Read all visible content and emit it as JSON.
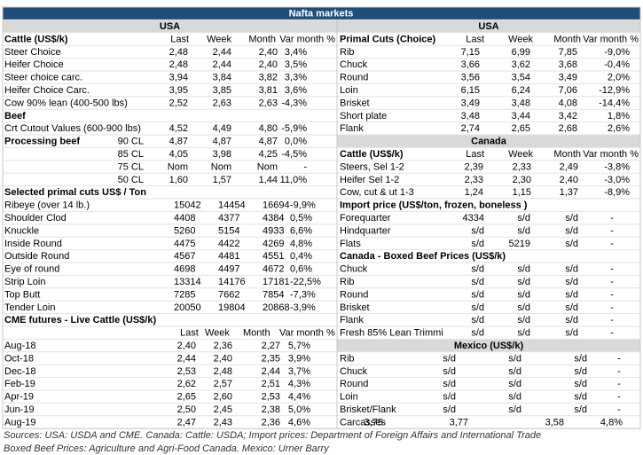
{
  "title": "Nafta markets",
  "left": {
    "region": "USA",
    "cattle": {
      "heading": "Cattle (US$/k)",
      "columns": [
        "Last",
        "Week",
        "Month",
        "Var month %"
      ],
      "rows": [
        [
          "Steer Choice",
          "2,48",
          "2,44",
          "2,40",
          "3,4%"
        ],
        [
          "Heifer Choice",
          "2,48",
          "2,44",
          "2,40",
          "3,5%"
        ],
        [
          "Steer choice carc.",
          "3,94",
          "3,84",
          "3,82",
          "3,3%"
        ],
        [
          "Heifer Choice Carc.",
          "3,95",
          "3,85",
          "3,81",
          "3,6%"
        ],
        [
          "Cow 90% lean (400-500 lbs)",
          "2,52",
          "2,63",
          "2,63",
          "-4,3%"
        ]
      ]
    },
    "beef": {
      "heading": "Beef",
      "rows": [
        [
          "Crt Cutout Values (600-900 lbs)",
          "4,52",
          "4,49",
          "4,80",
          "-5,9%"
        ]
      ]
    },
    "processing": {
      "heading": "Processing beef",
      "rows": [
        [
          "90 CL",
          "4,87",
          "4,87",
          "4,87",
          "0,0%"
        ],
        [
          "85 CL",
          "4,05",
          "3,98",
          "4,25",
          "-4,5%"
        ],
        [
          "75 CL",
          "Nom",
          "Nom",
          "Nom",
          "-"
        ],
        [
          "50 CL",
          "1,60",
          "1,57",
          "1,44",
          "11,0%"
        ]
      ]
    },
    "primal": {
      "heading": "Selected primal cuts US$ / Ton",
      "rows": [
        [
          "Ribeye (over 14 lb.)",
          "15042",
          "14454",
          "16694",
          "-9,9%"
        ],
        [
          "Shoulder Clod",
          "4408",
          "4377",
          "4384",
          "0,5%"
        ],
        [
          "Knuckle",
          "5260",
          "5154",
          "4933",
          "6,6%"
        ],
        [
          "Inside Round",
          "4475",
          "4422",
          "4269",
          "4,8%"
        ],
        [
          "Outside Round",
          "4567",
          "4481",
          "4551",
          "0,4%"
        ],
        [
          "Eye of round",
          "4698",
          "4497",
          "4672",
          "0,6%"
        ],
        [
          "Strip Loin",
          "13314",
          "14176",
          "17181",
          "-22,5%"
        ],
        [
          "Top Butt",
          "7285",
          "7662",
          "7854",
          "-7,3%"
        ],
        [
          "Tender Loin",
          "20050",
          "19804",
          "20868",
          "-3,9%"
        ]
      ]
    },
    "futures": {
      "heading": "CME futures - Live Cattle (US$/k)",
      "columns": [
        "Last",
        "Week",
        "Month",
        "Var month %"
      ],
      "rows": [
        [
          "Aug-18",
          "2,40",
          "2,36",
          "2,27",
          "5,7%"
        ],
        [
          "Oct-18",
          "2,44",
          "2,40",
          "2,35",
          "3,9%"
        ],
        [
          "Dec-18",
          "2,53",
          "2,48",
          "2,44",
          "3,7%"
        ],
        [
          "Feb-19",
          "2,62",
          "2,57",
          "2,51",
          "4,3%"
        ],
        [
          "Apr-19",
          "2,65",
          "2,60",
          "2,53",
          "4,4%"
        ],
        [
          "Jun-19",
          "2,50",
          "2,45",
          "2,38",
          "5,0%"
        ],
        [
          "Aug-19",
          "2,47",
          "2,43",
          "2,36",
          "4,6%"
        ]
      ]
    }
  },
  "right": {
    "region": "USA",
    "primal": {
      "heading": "Primal Cuts (Choice)",
      "columns": [
        "Last",
        "Week",
        "Month",
        "Var month %"
      ],
      "rows": [
        [
          "Rib",
          "7,15",
          "6,99",
          "7,85",
          "-9,0%"
        ],
        [
          "Chuck",
          "3,66",
          "3,62",
          "3,68",
          "-0,4%"
        ],
        [
          "Round",
          "3,56",
          "3,54",
          "3,49",
          "2,0%"
        ],
        [
          "Loin",
          "6,15",
          "6,24",
          "7,06",
          "-12,9%"
        ],
        [
          "Brisket",
          "3,49",
          "3,48",
          "4,08",
          "-14,4%"
        ],
        [
          "Short plate",
          "3,48",
          "3,44",
          "3,42",
          "1,8%"
        ],
        [
          "Flank",
          "2,74",
          "2,65",
          "2,68",
          "2,6%"
        ]
      ]
    }
  },
  "canada": {
    "region": "Canada",
    "cattle": {
      "heading": "Cattle (US$/k)",
      "columns": [
        "Last",
        "Week",
        "Month",
        "Var month %"
      ],
      "rows": [
        [
          "Steers, Sel 1-2",
          "2,39",
          "2,33",
          "2,49",
          "-3,8%"
        ],
        [
          "Heifer Sel 1-2",
          "2,33",
          "2,30",
          "2,40",
          "-3,0%"
        ],
        [
          "Cow, cut & ut 1-3",
          "1,24",
          "1,15",
          "1,37",
          "-8,9%"
        ]
      ]
    },
    "import": {
      "heading": "Import price (US$/ton, frozen, boneless )",
      "rows": [
        [
          "Forequarter",
          "4334",
          "s/d",
          "s/d",
          "-"
        ],
        [
          "Hindquarter",
          "s/d",
          "s/d",
          "s/d",
          "-"
        ],
        [
          "Flats",
          "s/d",
          "5219",
          "s/d",
          "-"
        ]
      ]
    },
    "boxed": {
      "heading": "Canada - Boxed Beef Prices (US$/k)",
      "rows": [
        [
          "Chuck",
          "s/d",
          "s/d",
          "s/d",
          "-"
        ],
        [
          "Rib",
          "s/d",
          "s/d",
          "s/d",
          "-"
        ],
        [
          "Round",
          "s/d",
          "s/d",
          "s/d",
          "-"
        ],
        [
          "Brisket",
          "s/d",
          "s/d",
          "s/d",
          "-"
        ],
        [
          "Flank",
          "s/d",
          "s/d",
          "s/d",
          "-"
        ],
        [
          "Fresh 85% Lean Trimmi",
          "s/d",
          "s/d",
          "s/d",
          "-"
        ]
      ]
    }
  },
  "mexico": {
    "region": "Mexico (US$/k)",
    "rows": [
      [
        "Rib",
        "s/d",
        "s/d",
        "s/d",
        "-"
      ],
      [
        "Chuck",
        "s/d",
        "s/d",
        "s/d",
        "-"
      ],
      [
        "Round",
        "s/d",
        "s/d",
        "s/d",
        "-"
      ],
      [
        "Loin",
        "s/d",
        "s/d",
        "s/d",
        "-"
      ],
      [
        "Brisket/Flank",
        "s/d",
        "s/d",
        "s/d",
        "-"
      ],
      [
        "Carcasses",
        "3,75",
        "3,77",
        "3,58",
        "4,8%"
      ]
    ]
  },
  "sources": [
    "Sources: USA: USDA and CME. Canada: Cattle: USDA; Import prices: Department of Foreign Affairs and International Trade",
    "Boxed Beef Prices: Agriculture and Agri-Food Canada. Mexico: Urner Barry"
  ]
}
